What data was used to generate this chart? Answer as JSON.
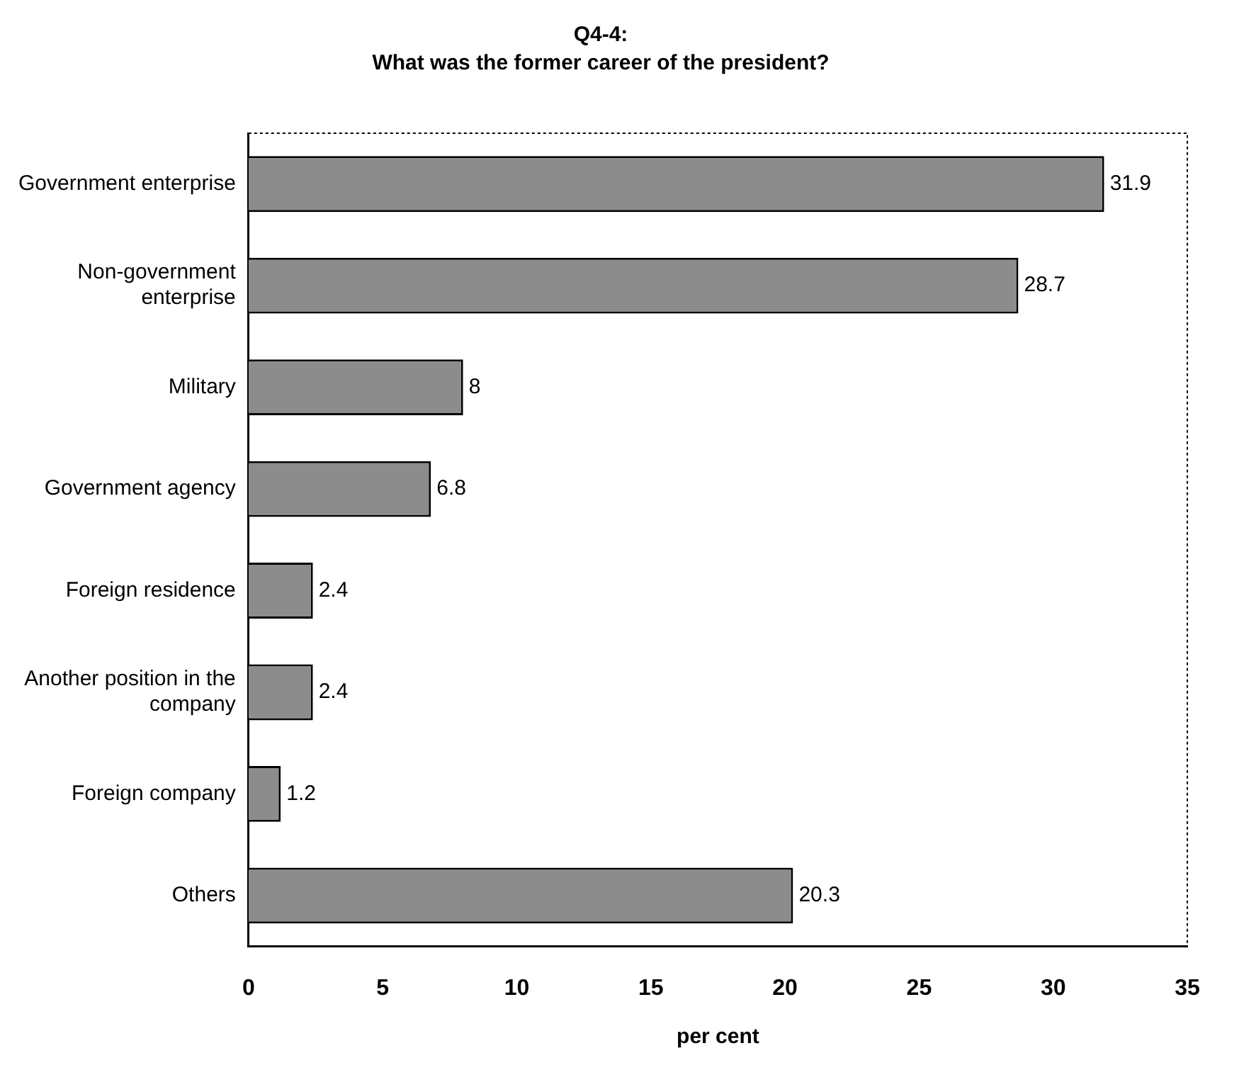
{
  "chart_data": {
    "type": "bar",
    "orientation": "horizontal",
    "title": "Q4-4:",
    "subtitle": "What was the former career of the president?",
    "xlabel": "per cent",
    "categories": [
      "Government enterprise",
      "Non-government enterprise",
      "Military",
      "Government agency",
      "Foreign residence",
      "Another position in the company",
      "Foreign company",
      "Others"
    ],
    "values": [
      31.9,
      28.7,
      8,
      6.8,
      2.4,
      2.4,
      1.2,
      20.3
    ],
    "color": "#8c8c8c",
    "xlim": [
      0,
      35
    ],
    "xticks": [
      0,
      5,
      10,
      15,
      20,
      25,
      30,
      35
    ],
    "grid": false,
    "data_labels": true
  }
}
